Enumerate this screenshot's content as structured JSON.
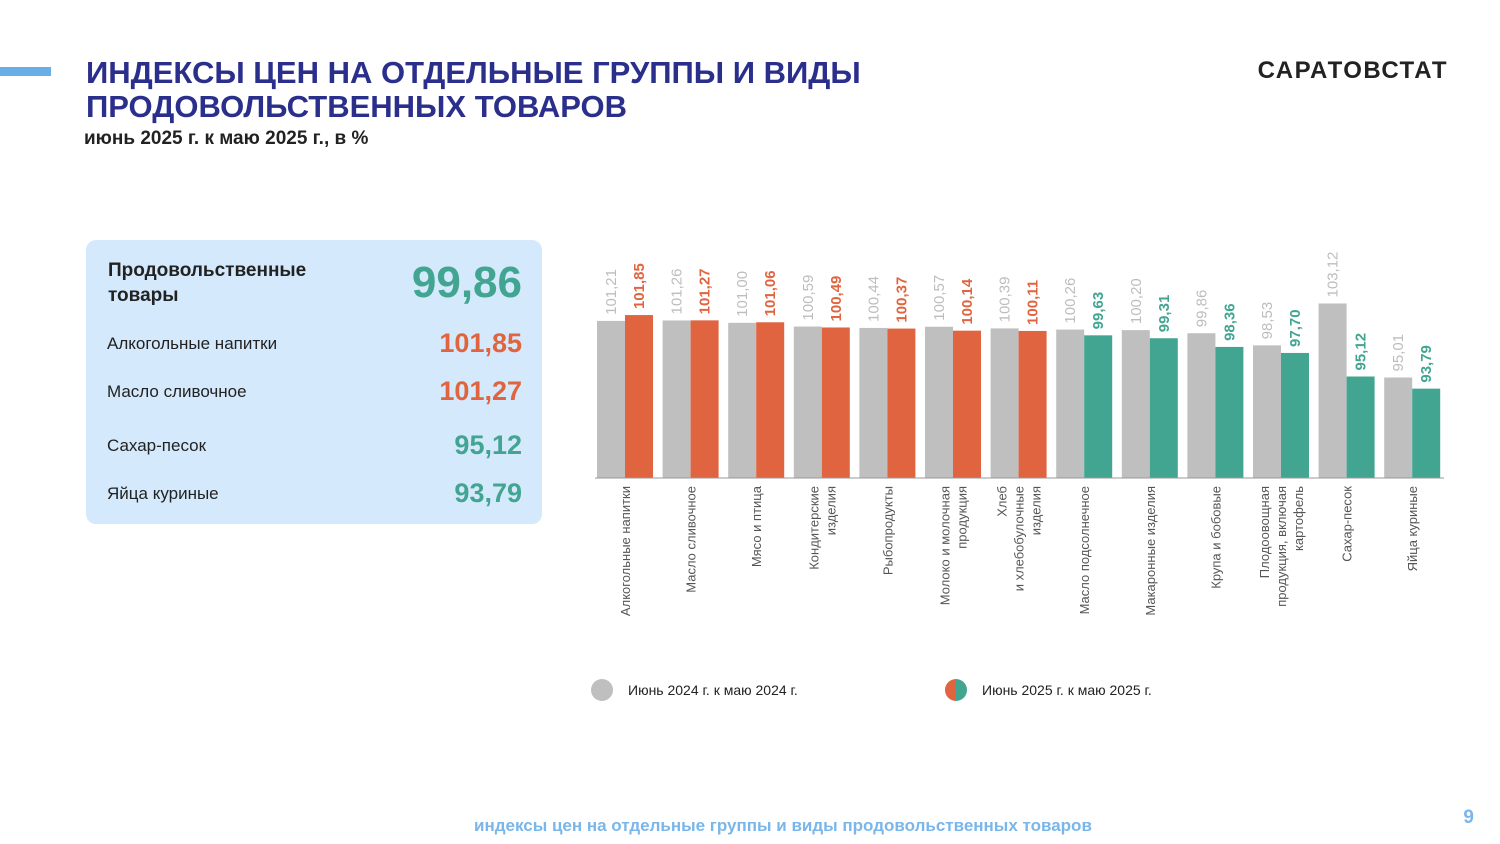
{
  "header": {
    "title": "ИНДЕКСЫ ЦЕН НА ОТДЕЛЬНЫЕ ГРУППЫ И ВИДЫ ПРОДОВОЛЬСТВЕННЫХ ТОВАРОВ",
    "subtitle": "июнь 2025 г. к маю 2025 г., в %",
    "brand": "САРАТОВСТАТ"
  },
  "summary": {
    "main": {
      "label": "Продовольственные товары",
      "value": "99,86"
    },
    "items": [
      {
        "label": "Алкогольные напитки",
        "value": "101,85",
        "color": "#e0643f"
      },
      {
        "label": "Масло сливочное",
        "value": "101,27",
        "color": "#e0643f"
      },
      {
        "label": "Сахар-песок",
        "value": "95,12",
        "color": "#42a592"
      },
      {
        "label": "Яйца куриные",
        "value": "93,79",
        "color": "#42a592"
      }
    ]
  },
  "colors": {
    "prev": "#bfbfbf",
    "up": "#e0643f",
    "down": "#42a592",
    "accent": "#6aaee8",
    "title": "#2b2f8c"
  },
  "chart_data": {
    "type": "bar",
    "categories": [
      "Алкогольные напитки",
      "Масло сливочное",
      "Мясо и птица",
      "Кондитерские изделия",
      "Рыбопродукты",
      "Молоко и молочная продукция",
      "Хлеб и хлебобулочные изделия",
      "Масло подсолнечное",
      "Макаронные изделия",
      "Крупа и бобовые",
      "Плодоовощная продукция, включая картофель",
      "Сахар-песок",
      "Яйца куриные"
    ],
    "category_lines": [
      [
        "Алкогольные напитки"
      ],
      [
        "Масло сливочное"
      ],
      [
        "Мясо и птица"
      ],
      [
        "Кондитерские",
        "изделия"
      ],
      [
        "Рыбопродукты"
      ],
      [
        "Молоко и молочная",
        "продукция"
      ],
      [
        "Хлеб",
        "и хлебобулочные",
        "изделия"
      ],
      [
        "Масло подсолнечное"
      ],
      [
        "Макаронные изделия"
      ],
      [
        "Крупа и бобовые"
      ],
      [
        "Плодоовощная",
        "продукция, включая",
        "картофель"
      ],
      [
        "Сахар-песок"
      ],
      [
        "Яйца куриные"
      ]
    ],
    "series": [
      {
        "name": "Июнь 2024 г. к маю 2024 г.",
        "values": [
          101.21,
          101.26,
          101.0,
          100.59,
          100.44,
          100.57,
          100.39,
          100.26,
          100.2,
          99.86,
          98.53,
          103.12,
          95.01
        ],
        "labels": [
          "101,21",
          "101,26",
          "101,00",
          "100,59",
          "100,44",
          "100,57",
          "100,39",
          "100,26",
          "100,20",
          "99,86",
          "98,53",
          "103,12",
          "95,01"
        ]
      },
      {
        "name": "Июнь 2025 г. к маю 2025 г.",
        "values": [
          101.85,
          101.27,
          101.06,
          100.49,
          100.37,
          100.14,
          100.11,
          99.63,
          99.31,
          98.36,
          97.7,
          95.12,
          93.79
        ],
        "labels": [
          "101,85",
          "101,27",
          "101,06",
          "100,49",
          "100,37",
          "100,14",
          "100,11",
          "99,63",
          "99,31",
          "98,36",
          "97,70",
          "95,12",
          "93,79"
        ]
      }
    ]
  },
  "legend": {
    "prev": "Июнь 2024 г. к маю 2024 г.",
    "curr": "Июнь 2025 г. к маю 2025 г."
  },
  "footer": {
    "text": "индексы цен на отдельные группы и виды продовольственных товаров",
    "page": "9"
  }
}
